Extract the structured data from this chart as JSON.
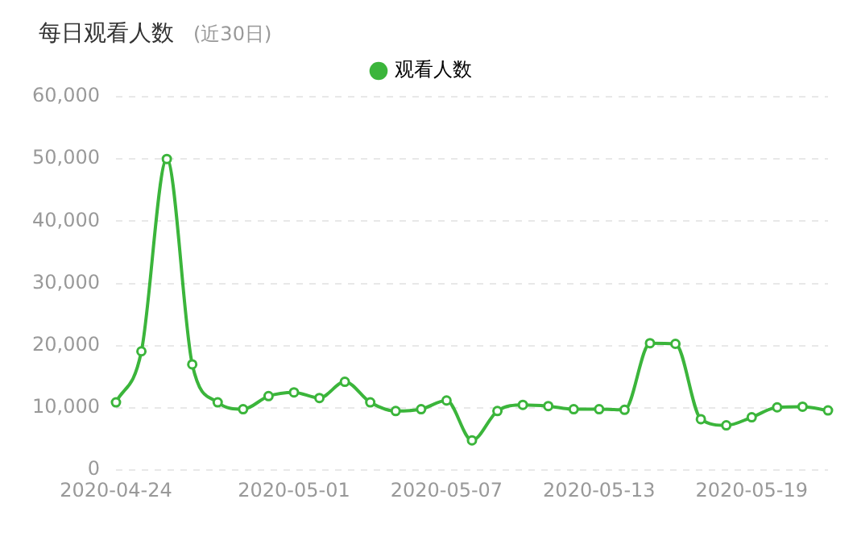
{
  "chart_data": {
    "type": "line",
    "title": "每日观看人数",
    "subtitle": "(近30日)",
    "categories": [
      "2020-04-24",
      null,
      null,
      null,
      null,
      null,
      null,
      "2020-05-01",
      null,
      null,
      null,
      null,
      null,
      "2020-05-07",
      null,
      null,
      null,
      null,
      null,
      "2020-05-13",
      null,
      null,
      null,
      null,
      null,
      "2020-05-19",
      null,
      null,
      null
    ],
    "series": [
      {
        "name": "观看人数",
        "color": "#3bb53b",
        "values": [
          10900,
          19100,
          50000,
          17000,
          10900,
          9800,
          11900,
          12500,
          11600,
          14200,
          10900,
          9500,
          9800,
          11200,
          4800,
          9500,
          10500,
          10300,
          9800,
          9800,
          9700,
          20400,
          20300,
          8200,
          7200,
          8500,
          10100,
          10200,
          9600
        ]
      }
    ],
    "ylim": [
      0,
      60000
    ],
    "yticks": [
      0,
      {
        "value": 10000,
        "label": "10,000"
      },
      {
        "value": 20000,
        "label": "20,000"
      },
      {
        "value": 30000,
        "label": "30,000"
      },
      {
        "value": 40000,
        "label": "40,000"
      },
      {
        "value": 50000,
        "label": "50,000"
      },
      {
        "value": 60000,
        "label": "60,000"
      }
    ],
    "grid": "y",
    "legend": "top",
    "marker": "circle",
    "line_style": "solid"
  }
}
